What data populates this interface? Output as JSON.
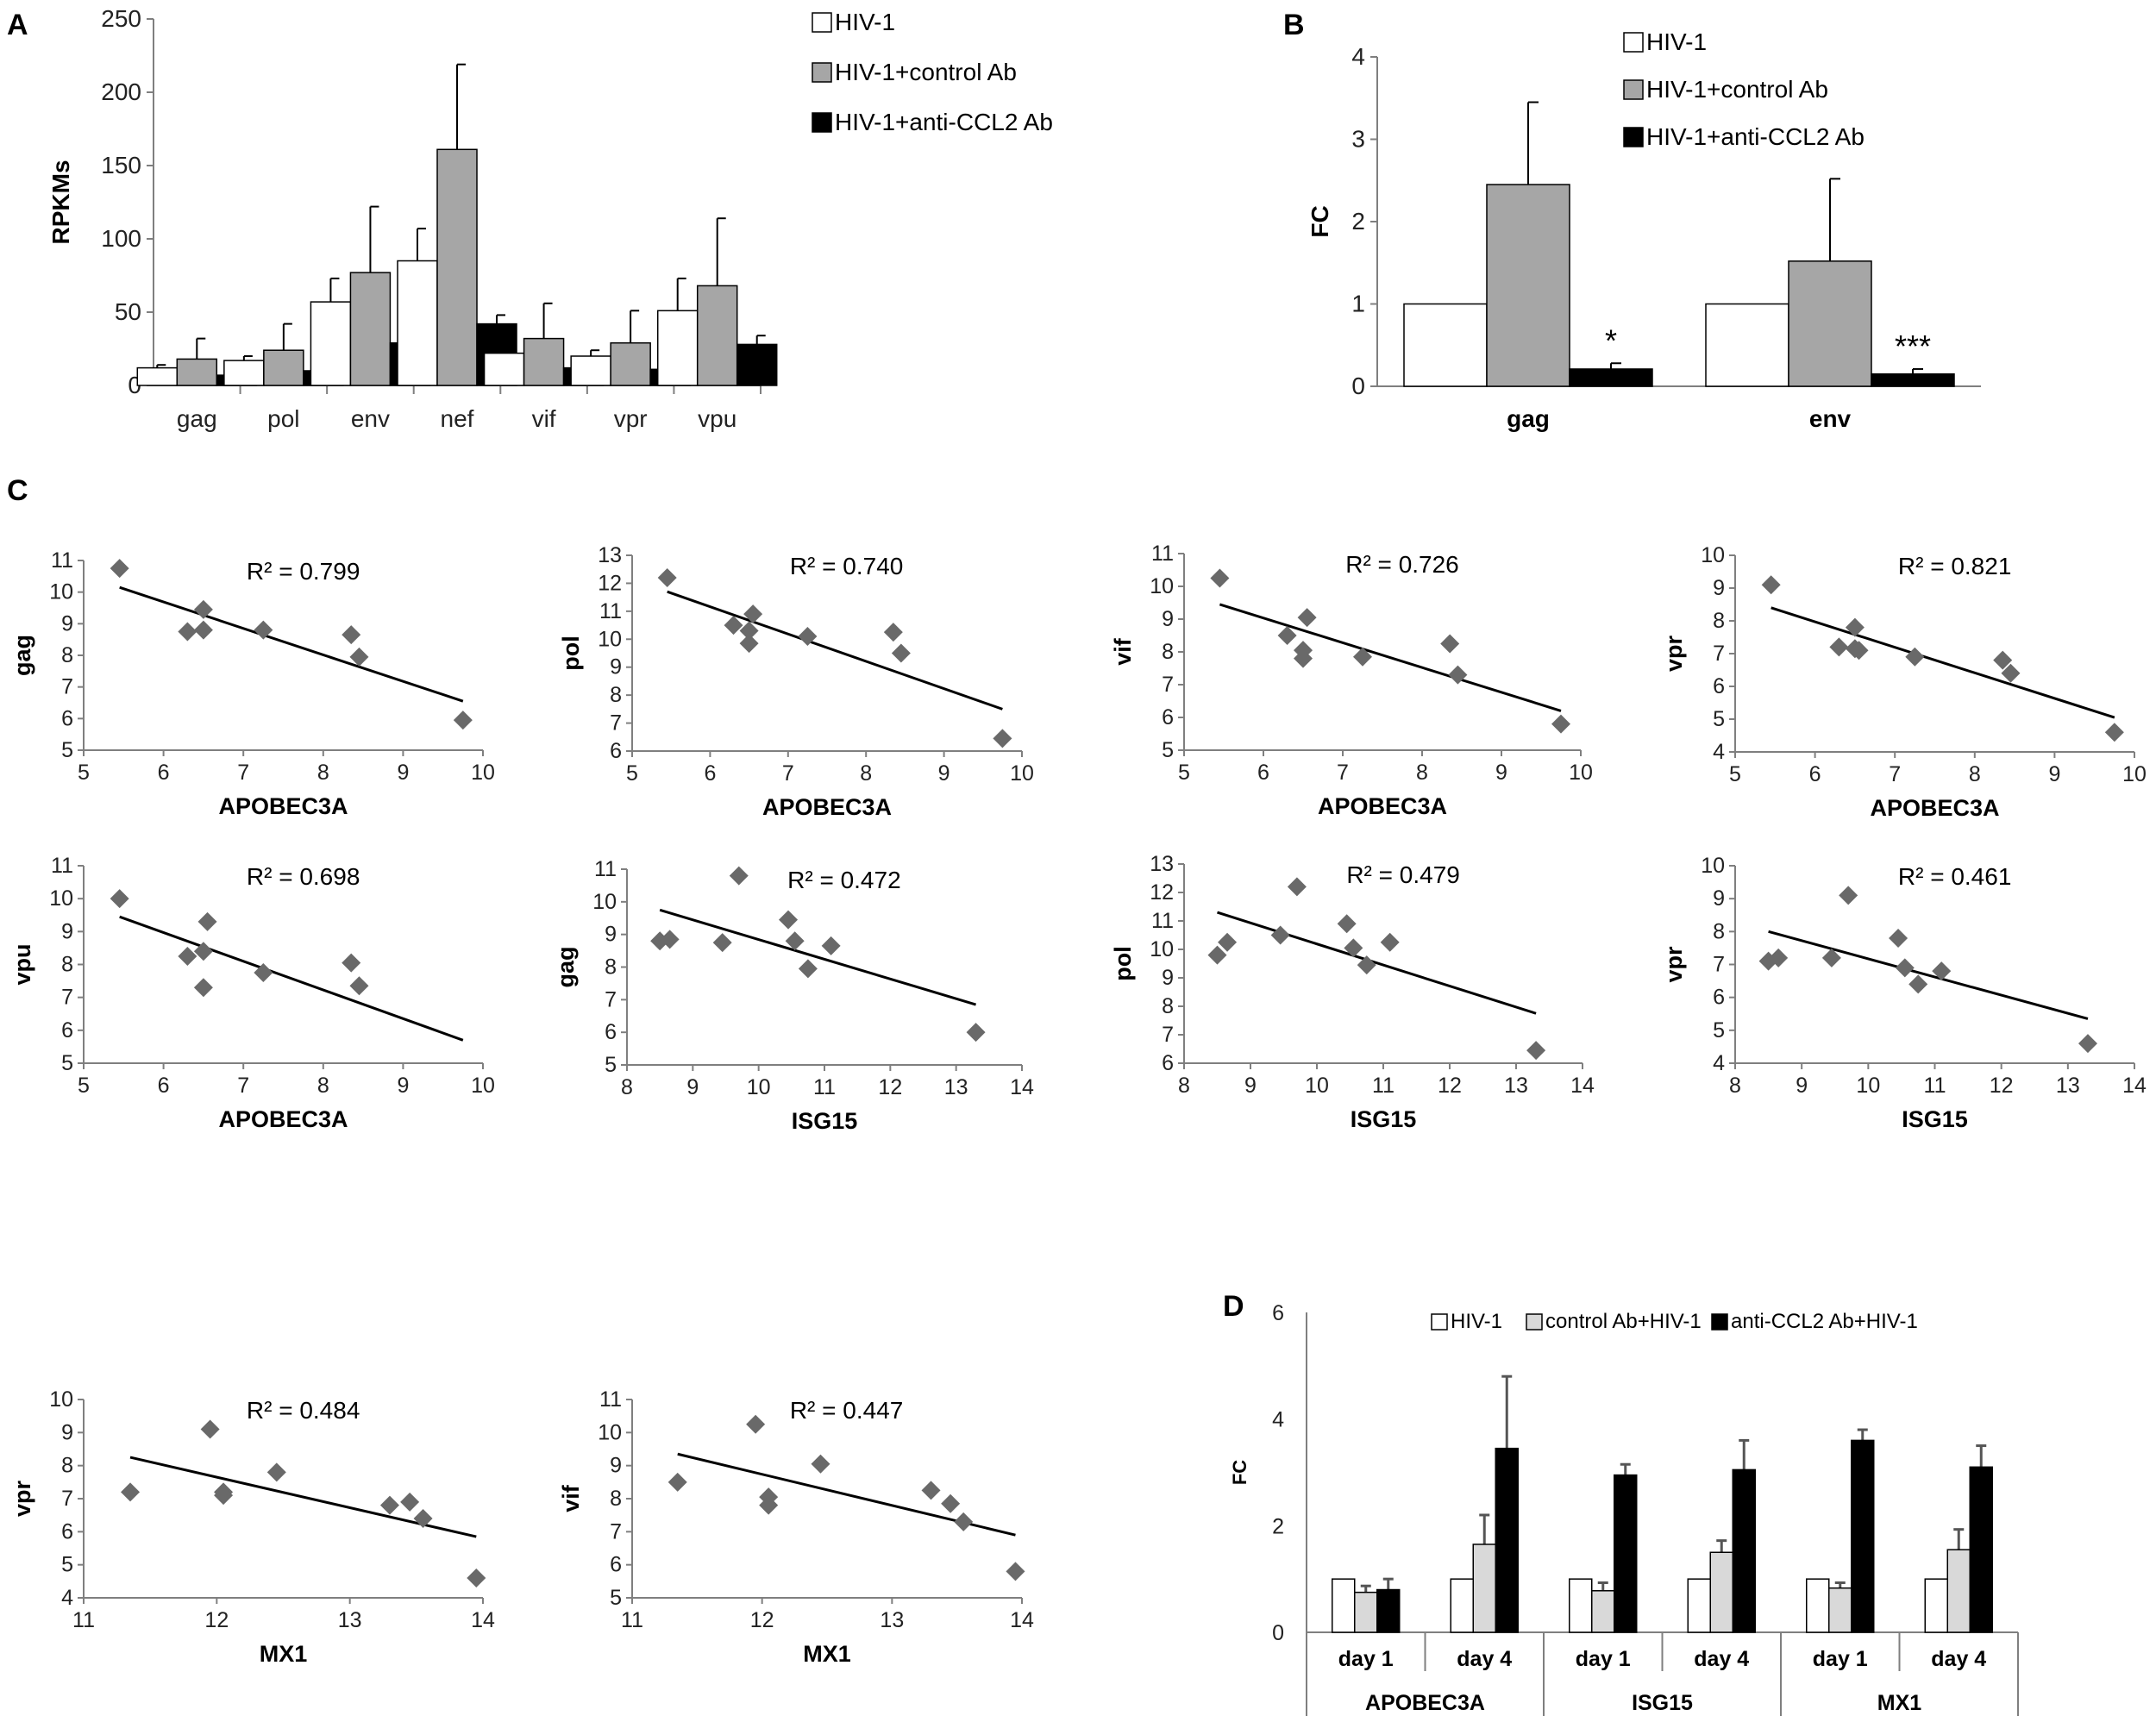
{
  "panel_labels": {
    "a": "A",
    "b": "B",
    "c": "C",
    "d": "D"
  },
  "chart_data": [
    {
      "id": "A",
      "type": "bar",
      "title": "",
      "xlabel": "",
      "ylabel": "RPKMs",
      "ylim": [
        0,
        250
      ],
      "yticks": [
        0,
        50,
        100,
        150,
        200,
        250
      ],
      "legend_position": "top-center",
      "categories": [
        "gag",
        "pol",
        "env",
        "nef",
        "vif",
        "vpr",
        "vpu"
      ],
      "series": [
        {
          "name": "HIV-1",
          "color": "#ffffff",
          "values": [
            12,
            17,
            57,
            85,
            22,
            20,
            51
          ],
          "errors": [
            2,
            3,
            16,
            22,
            6,
            4,
            22
          ]
        },
        {
          "name": "HIV-1+control Ab",
          "color": "#a6a6a6",
          "values": [
            18,
            24,
            77,
            161,
            32,
            29,
            68
          ],
          "errors": [
            14,
            18,
            45,
            58,
            24,
            22,
            46
          ]
        },
        {
          "name": "HIV-1+anti-CCL2 Ab",
          "color": "#000000",
          "values": [
            7,
            10,
            29,
            42,
            12,
            11,
            28
          ],
          "errors": [
            3,
            3,
            6,
            6,
            3,
            2,
            6
          ]
        }
      ]
    },
    {
      "id": "B",
      "type": "bar",
      "title": "",
      "xlabel": "",
      "ylabel": "FC",
      "ylim": [
        0,
        4
      ],
      "yticks": [
        0,
        1,
        2,
        3,
        4
      ],
      "legend_position": "top-left",
      "categories": [
        "gag",
        "env"
      ],
      "series": [
        {
          "name": "HIV-1",
          "color": "#ffffff",
          "values": [
            1.0,
            1.0
          ],
          "errors": [
            0,
            0
          ]
        },
        {
          "name": "HIV-1+control Ab",
          "color": "#a6a6a6",
          "values": [
            2.45,
            1.52
          ],
          "errors": [
            1.0,
            1.0
          ]
        },
        {
          "name": "HIV-1+anti-CCL2 Ab",
          "color": "#000000",
          "values": [
            0.21,
            0.15
          ],
          "errors": [
            0.07,
            0.06
          ]
        }
      ],
      "annotations": [
        "*",
        "***"
      ]
    },
    {
      "id": "C1",
      "type": "scatter",
      "xlabel": "APOBEC3A",
      "ylabel": "gag",
      "xlim": [
        5,
        10
      ],
      "ylim": [
        5,
        11
      ],
      "xticks": [
        5,
        6,
        7,
        8,
        9,
        10
      ],
      "yticks": [
        5,
        6,
        7,
        8,
        9,
        10,
        11
      ],
      "r2": "R² = 0.799",
      "x": [
        5.45,
        6.3,
        6.5,
        6.5,
        7.25,
        8.35,
        8.45,
        9.75
      ],
      "y": [
        10.75,
        8.75,
        8.8,
        9.45,
        8.8,
        8.65,
        7.95,
        5.95
      ],
      "fit": {
        "x0": 5.45,
        "y0": 10.15,
        "x1": 9.75,
        "y1": 6.55
      }
    },
    {
      "id": "C2",
      "type": "scatter",
      "xlabel": "APOBEC3A",
      "ylabel": "pol",
      "xlim": [
        5,
        10
      ],
      "ylim": [
        6,
        13
      ],
      "xticks": [
        5,
        6,
        7,
        8,
        9,
        10
      ],
      "yticks": [
        6,
        7,
        8,
        9,
        10,
        11,
        12,
        13
      ],
      "r2": "R² = 0.740",
      "x": [
        5.45,
        6.3,
        6.5,
        6.5,
        6.55,
        7.25,
        8.35,
        8.45,
        9.75
      ],
      "y": [
        12.2,
        10.5,
        10.3,
        9.85,
        10.9,
        10.1,
        10.25,
        9.5,
        6.45
      ],
      "fit": {
        "x0": 5.45,
        "y0": 11.7,
        "x1": 9.75,
        "y1": 7.5
      }
    },
    {
      "id": "C3",
      "type": "scatter",
      "xlabel": "APOBEC3A",
      "ylabel": "vif",
      "xlim": [
        5,
        10
      ],
      "ylim": [
        5,
        11
      ],
      "xticks": [
        5,
        6,
        7,
        8,
        9,
        10
      ],
      "yticks": [
        5,
        6,
        7,
        8,
        9,
        10,
        11
      ],
      "r2": "R² = 0.726",
      "x": [
        5.45,
        6.3,
        6.5,
        6.5,
        6.55,
        7.25,
        8.35,
        8.45,
        9.75
      ],
      "y": [
        10.25,
        8.5,
        8.05,
        7.8,
        9.05,
        7.85,
        8.25,
        7.3,
        5.8
      ],
      "fit": {
        "x0": 5.45,
        "y0": 9.45,
        "x1": 9.75,
        "y1": 6.2
      }
    },
    {
      "id": "C4",
      "type": "scatter",
      "xlabel": "APOBEC3A",
      "ylabel": "vpr",
      "xlim": [
        5,
        10
      ],
      "ylim": [
        4,
        10
      ],
      "xticks": [
        5,
        6,
        7,
        8,
        9,
        10
      ],
      "yticks": [
        4,
        5,
        6,
        7,
        8,
        9,
        10
      ],
      "r2": "R² = 0.821",
      "x": [
        5.45,
        6.3,
        6.5,
        6.5,
        6.55,
        7.25,
        8.35,
        8.45,
        9.75
      ],
      "y": [
        9.1,
        7.2,
        7.15,
        7.8,
        7.1,
        6.9,
        6.8,
        6.4,
        4.6
      ],
      "fit": {
        "x0": 5.45,
        "y0": 8.4,
        "x1": 9.75,
        "y1": 5.05
      }
    },
    {
      "id": "C5",
      "type": "scatter",
      "xlabel": "APOBEC3A",
      "ylabel": "vpu",
      "xlim": [
        5,
        10
      ],
      "ylim": [
        5,
        11
      ],
      "xticks": [
        5,
        6,
        7,
        8,
        9,
        10
      ],
      "yticks": [
        5,
        6,
        7,
        8,
        9,
        10,
        11
      ],
      "r2": "R² = 0.698",
      "x": [
        5.45,
        6.3,
        6.5,
        6.5,
        6.55,
        7.25,
        8.35,
        8.45
      ],
      "y": [
        10.0,
        8.25,
        8.4,
        7.3,
        9.3,
        7.75,
        8.05,
        7.35
      ],
      "fit": {
        "x0": 5.45,
        "y0": 9.45,
        "x1": 9.75,
        "y1": 5.7
      }
    },
    {
      "id": "C6",
      "type": "scatter",
      "xlabel": "ISG15",
      "ylabel": "gag",
      "xlim": [
        8,
        14
      ],
      "ylim": [
        5,
        11
      ],
      "xticks": [
        8,
        9,
        10,
        11,
        12,
        13,
        14
      ],
      "yticks": [
        5,
        6,
        7,
        8,
        9,
        10,
        11
      ],
      "r2": "R² = 0.472",
      "x": [
        8.5,
        8.65,
        9.45,
        9.7,
        10.45,
        10.55,
        10.75,
        11.1,
        13.3
      ],
      "y": [
        8.8,
        8.85,
        8.75,
        10.8,
        9.45,
        8.8,
        7.95,
        8.65,
        6.0
      ],
      "fit": {
        "x0": 8.5,
        "y0": 9.75,
        "x1": 13.3,
        "y1": 6.85
      }
    },
    {
      "id": "C7",
      "type": "scatter",
      "xlabel": "ISG15",
      "ylabel": "pol",
      "xlim": [
        8,
        14
      ],
      "ylim": [
        6,
        13
      ],
      "xticks": [
        8,
        9,
        10,
        11,
        12,
        13,
        14
      ],
      "yticks": [
        6,
        7,
        8,
        9,
        10,
        11,
        12,
        13
      ],
      "r2": "R² = 0.479",
      "x": [
        8.5,
        8.65,
        9.45,
        9.7,
        10.45,
        10.55,
        10.75,
        11.1,
        13.3
      ],
      "y": [
        9.8,
        10.25,
        10.5,
        12.2,
        10.9,
        10.05,
        9.45,
        10.25,
        6.45
      ],
      "fit": {
        "x0": 8.5,
        "y0": 11.3,
        "x1": 13.3,
        "y1": 7.75
      }
    },
    {
      "id": "C8",
      "type": "scatter",
      "xlabel": "ISG15",
      "ylabel": "vpr",
      "xlim": [
        8,
        14
      ],
      "ylim": [
        4,
        10
      ],
      "xticks": [
        8,
        9,
        10,
        11,
        12,
        13,
        14
      ],
      "yticks": [
        4,
        5,
        6,
        7,
        8,
        9,
        10
      ],
      "r2": "R² = 0.461",
      "x": [
        8.5,
        8.65,
        9.45,
        9.7,
        10.45,
        10.55,
        10.75,
        11.1,
        13.3
      ],
      "y": [
        7.1,
        7.2,
        7.2,
        9.1,
        7.8,
        6.9,
        6.4,
        6.8,
        4.6
      ],
      "fit": {
        "x0": 8.5,
        "y0": 8.0,
        "x1": 13.3,
        "y1": 5.35
      }
    },
    {
      "id": "C9",
      "type": "scatter",
      "xlabel": "MX1",
      "ylabel": "vpr",
      "xlim": [
        11,
        14
      ],
      "ylim": [
        4,
        10
      ],
      "xticks": [
        11,
        12,
        13,
        14
      ],
      "yticks": [
        4,
        5,
        6,
        7,
        8,
        9,
        10
      ],
      "r2": "R² = 0.484",
      "x": [
        11.35,
        11.95,
        12.05,
        12.05,
        12.45,
        13.3,
        13.45,
        13.55,
        13.95
      ],
      "y": [
        7.2,
        9.1,
        7.2,
        7.1,
        7.8,
        6.8,
        6.9,
        6.4,
        4.6
      ],
      "fit": {
        "x0": 11.35,
        "y0": 8.25,
        "x1": 13.95,
        "y1": 5.85
      }
    },
    {
      "id": "C10",
      "type": "scatter",
      "xlabel": "MX1",
      "ylabel": "vif",
      "xlim": [
        11,
        14
      ],
      "ylim": [
        5,
        11
      ],
      "xticks": [
        11,
        12,
        13,
        14
      ],
      "yticks": [
        5,
        6,
        7,
        8,
        9,
        10,
        11
      ],
      "r2": "R² = 0.447",
      "x": [
        11.35,
        11.95,
        12.05,
        12.05,
        12.45,
        13.3,
        13.45,
        13.55,
        13.95
      ],
      "y": [
        8.5,
        10.25,
        8.05,
        7.8,
        9.05,
        8.25,
        7.85,
        7.3,
        5.8
      ],
      "fit": {
        "x0": 11.35,
        "y0": 9.35,
        "x1": 13.95,
        "y1": 6.9
      }
    },
    {
      "id": "D",
      "type": "bar",
      "title": "",
      "xlabel": "",
      "ylabel": "FC",
      "ylim": [
        0,
        6
      ],
      "yticks": [
        0,
        2,
        4,
        6
      ],
      "legend_position": "top",
      "groups": [
        "APOBEC3A",
        "ISG15",
        "MX1"
      ],
      "categories": [
        "day 1",
        "day 4",
        "day 1",
        "day 4",
        "day 1",
        "day 4"
      ],
      "series": [
        {
          "name": "HIV-1",
          "color": "#ffffff",
          "values": [
            1.0,
            1.0,
            1.0,
            1.0,
            1.0,
            1.0
          ],
          "errors": [
            0,
            0,
            0,
            0,
            0,
            0
          ]
        },
        {
          "name": "control Ab+HIV-1",
          "color": "#d9d9d9",
          "values": [
            0.75,
            1.65,
            0.78,
            1.5,
            0.83,
            1.55
          ],
          "errors": [
            0.12,
            0.55,
            0.15,
            0.22,
            0.1,
            0.38
          ]
        },
        {
          "name": "anti-CCL2 Ab+HIV-1",
          "color": "#000000",
          "values": [
            0.8,
            3.45,
            2.95,
            3.05,
            3.6,
            3.1
          ],
          "errors": [
            0.2,
            1.35,
            0.2,
            0.55,
            0.2,
            0.4
          ]
        }
      ]
    }
  ]
}
